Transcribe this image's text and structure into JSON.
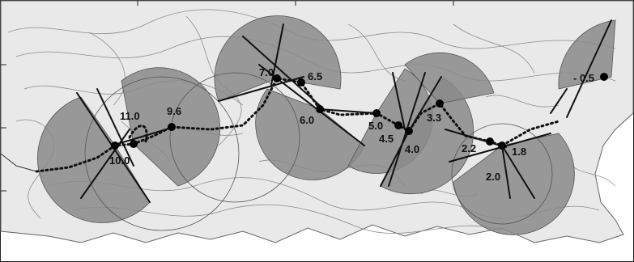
{
  "map": {
    "colors": {
      "background": "#e9e9e9",
      "sector_fill": "#8a8a8a",
      "contour": "#8c8c8c",
      "track": "#111111"
    },
    "stations": [
      {
        "id": "s1",
        "label": "10.0"
      },
      {
        "id": "s2",
        "label": "11.0"
      },
      {
        "id": "s3",
        "label": "9.6"
      },
      {
        "id": "s4",
        "label": "7.0"
      },
      {
        "id": "s5",
        "label": "6.5"
      },
      {
        "id": "s6",
        "label": "6.0"
      },
      {
        "id": "s7",
        "label": "5.0"
      },
      {
        "id": "s8",
        "label": "4.5"
      },
      {
        "id": "s9",
        "label": "4.0"
      },
      {
        "id": "s10",
        "label": "3.3"
      },
      {
        "id": "s11",
        "label": "2.2"
      },
      {
        "id": "s12",
        "label": "1.8"
      },
      {
        "id": "s13",
        "label": "2.0"
      },
      {
        "id": "s14",
        "label": "- 0.5"
      }
    ]
  }
}
